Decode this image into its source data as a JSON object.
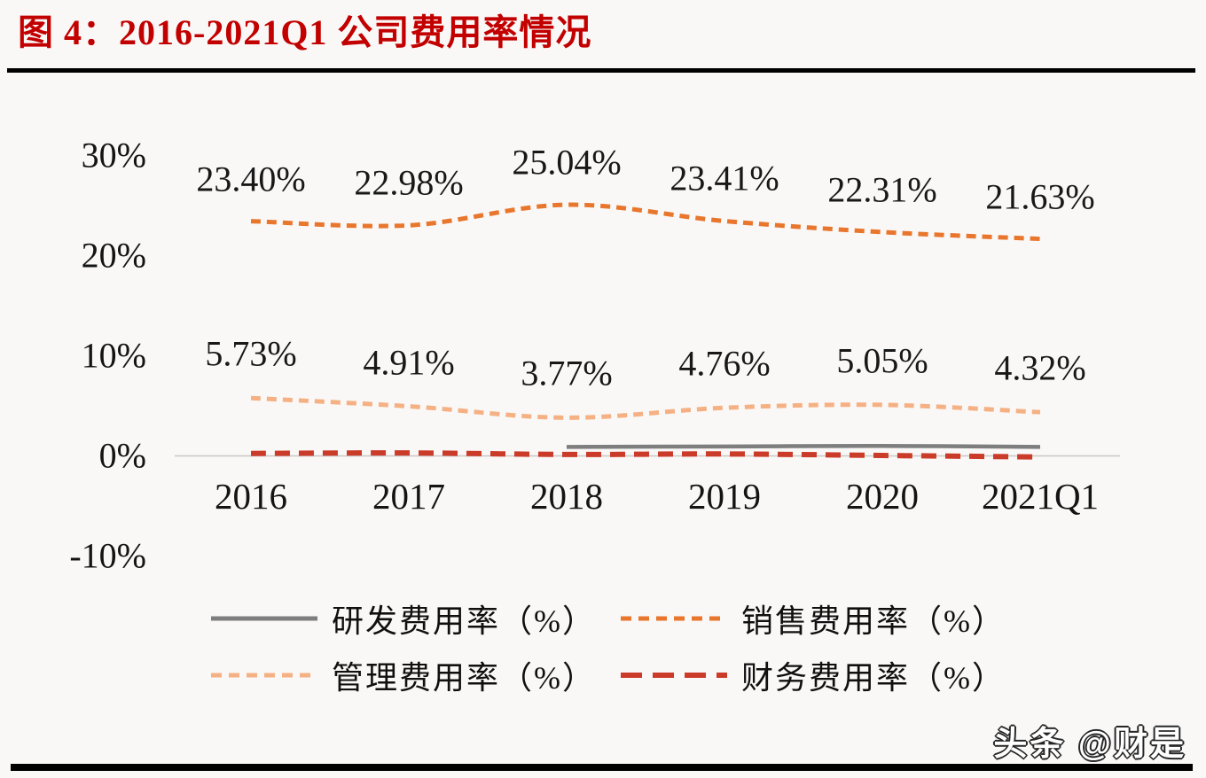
{
  "header": {
    "title": "图 4：2016-2021Q1 公司费用率情况"
  },
  "watermark": {
    "text": "头条 @财是"
  },
  "colors": {
    "title_red": "#C20000",
    "sales_orange": "#E8762C",
    "mgmt_light_orange": "#F5B183",
    "rnd_gray": "#7E7E7E",
    "fin_red": "#CB3B2A",
    "axis_gray": "#C9C7C7",
    "text_black": "#181818",
    "rule_black": "#000000",
    "background": "#FAF8F7"
  },
  "chart_data": {
    "type": "line",
    "title": "图 4：2016-2021Q1 公司费用率情况",
    "categories": [
      "2016",
      "2017",
      "2018",
      "2019",
      "2020",
      "2021Q1"
    ],
    "y_ticks": [
      {
        "value": 30,
        "label": "30%"
      },
      {
        "value": 20,
        "label": "20%"
      },
      {
        "value": 10,
        "label": "10%"
      },
      {
        "value": 0,
        "label": "0%"
      },
      {
        "value": -10,
        "label": "-10%"
      }
    ],
    "ylim": [
      -10,
      30
    ],
    "grid": false,
    "smooth_lines": true,
    "legend_position": "bottom",
    "series": [
      {
        "key": "rnd",
        "name": "研发费用率（%）",
        "style": "solid",
        "color": "#7E7E7E",
        "values": [
          null,
          null,
          0.85,
          0.9,
          0.95,
          0.85
        ],
        "labels_visible": false
      },
      {
        "key": "sales",
        "name": "销售费用率（%）",
        "style": "dashed-short",
        "color": "#E8762C",
        "values": [
          23.4,
          22.98,
          25.04,
          23.41,
          22.31,
          21.63
        ],
        "labels": [
          "23.40%",
          "22.98%",
          "25.04%",
          "23.41%",
          "22.31%",
          "21.63%"
        ],
        "labels_visible": true
      },
      {
        "key": "mgmt",
        "name": "管理费用率（%）",
        "style": "dashed-short",
        "color": "#F5B183",
        "values": [
          5.73,
          4.91,
          3.77,
          4.76,
          5.05,
          4.32
        ],
        "labels": [
          "5.73%",
          "4.91%",
          "3.77%",
          "4.76%",
          "5.05%",
          "4.32%"
        ],
        "labels_visible": true
      },
      {
        "key": "fin",
        "name": "财务费用率（%）",
        "style": "dashed-long",
        "color": "#CB3B2A",
        "values": [
          0.2,
          0.25,
          0.1,
          0.15,
          0.0,
          -0.15
        ],
        "labels_visible": false
      }
    ],
    "legend_order": [
      "rnd",
      "sales",
      "mgmt",
      "fin"
    ]
  }
}
